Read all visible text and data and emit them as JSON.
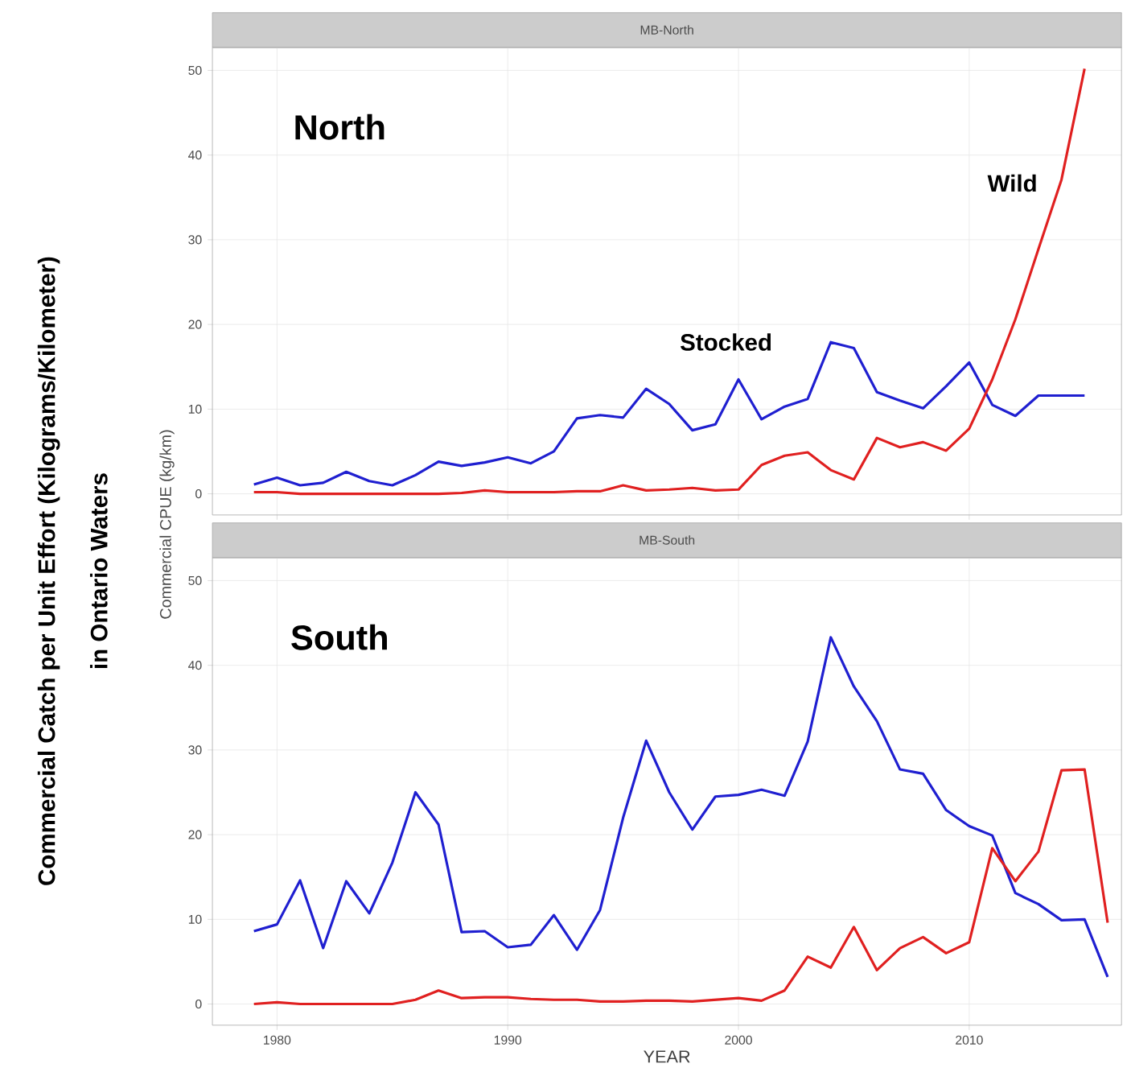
{
  "chart_data": [
    {
      "type": "line",
      "title": "MB-North",
      "ylabel": "Commercial CPUE (kg/km)",
      "annotations": [
        "North",
        "Commercial Catch per Unit Effort (Kilograms/Kilometer)",
        "in Ontario Waters"
      ],
      "x": [
        1979,
        1980,
        1981,
        1982,
        1983,
        1984,
        1985,
        1986,
        1987,
        1988,
        1989,
        1990,
        1991,
        1992,
        1993,
        1994,
        1995,
        1996,
        1997,
        1998,
        1999,
        2000,
        2001,
        2002,
        2003,
        2004,
        2005,
        2006,
        2007,
        2008,
        2009,
        2010,
        2011,
        2012,
        2013,
        2014,
        2015
      ],
      "series": [
        {
          "name": "Stocked",
          "color": "#1f1fd0",
          "values": [
            1.1,
            1.9,
            1.0,
            1.3,
            2.6,
            1.5,
            1.0,
            2.2,
            3.8,
            3.3,
            3.7,
            4.3,
            3.6,
            5.0,
            8.9,
            9.3,
            9.0,
            12.4,
            10.6,
            7.5,
            8.2,
            13.5,
            8.8,
            10.3,
            11.2,
            17.9,
            17.2,
            12.0,
            11.0,
            10.1,
            12.7,
            15.5,
            10.5,
            9.2,
            11.6,
            11.6,
            11.6
          ]
        },
        {
          "name": "Wild",
          "color": "#e02020",
          "values": [
            0.2,
            0.2,
            0,
            0,
            0,
            0,
            0,
            0,
            0,
            0.1,
            0.4,
            0.2,
            0.2,
            0.2,
            0.3,
            0.3,
            1.0,
            0.4,
            0.5,
            0.7,
            0.4,
            0.5,
            3.4,
            4.5,
            4.9,
            2.8,
            1.7,
            6.6,
            5.5,
            6.1,
            5.1,
            7.7,
            13.5,
            20.6,
            28.9,
            37.1,
            50.2
          ]
        }
      ],
      "xlim": [
        1977.2,
        2016.6
      ],
      "ylim": [
        -2.5,
        52.7
      ],
      "xticks": [
        1980,
        1990,
        2000,
        2010
      ],
      "yticks": [
        0,
        10,
        20,
        30,
        40,
        50
      ],
      "grid": true,
      "tick_labels": "y"
    },
    {
      "type": "line",
      "title": "MB-South",
      "xlabel": "YEAR",
      "annotations": [
        "South"
      ],
      "x": [
        1979,
        1980,
        1981,
        1982,
        1983,
        1984,
        1985,
        1986,
        1987,
        1988,
        1989,
        1990,
        1991,
        1992,
        1993,
        1994,
        1995,
        1996,
        1997,
        1998,
        1999,
        2000,
        2001,
        2002,
        2003,
        2004,
        2005,
        2006,
        2007,
        2008,
        2009,
        2010,
        2011,
        2012,
        2013,
        2014,
        2015,
        2016
      ],
      "series": [
        {
          "color": "#1f1fd0",
          "values": [
            8.6,
            9.4,
            14.6,
            6.6,
            14.5,
            10.7,
            16.7,
            25.0,
            21.2,
            8.5,
            8.6,
            6.7,
            7.0,
            10.5,
            6.4,
            11.1,
            22.0,
            31.1,
            25.0,
            20.6,
            24.5,
            24.7,
            25.3,
            24.6,
            31.0,
            43.3,
            37.5,
            33.4,
            27.7,
            27.2,
            22.9,
            21.0,
            19.9,
            13.1,
            11.8,
            9.9,
            10.0,
            3.2
          ]
        },
        {
          "color": "#e02020",
          "values": [
            0,
            0.2,
            0,
            0,
            0,
            0,
            0,
            0.5,
            1.6,
            0.7,
            0.8,
            0.8,
            0.6,
            0.5,
            0.5,
            0.3,
            0.3,
            0.4,
            0.4,
            0.3,
            0.5,
            0.7,
            0.4,
            1.6,
            5.6,
            4.3,
            9.1,
            4.0,
            6.6,
            7.9,
            6.0,
            7.3,
            18.4,
            14.5,
            18.0,
            27.6,
            27.7,
            9.6
          ]
        }
      ],
      "xlim": [
        1977.2,
        2016.6
      ],
      "ylim": [
        -2.5,
        52.7
      ],
      "xticks": [
        1980,
        1990,
        2000,
        2010
      ],
      "yticks": [
        0,
        10,
        20,
        30,
        40,
        50
      ],
      "grid": true
    }
  ]
}
